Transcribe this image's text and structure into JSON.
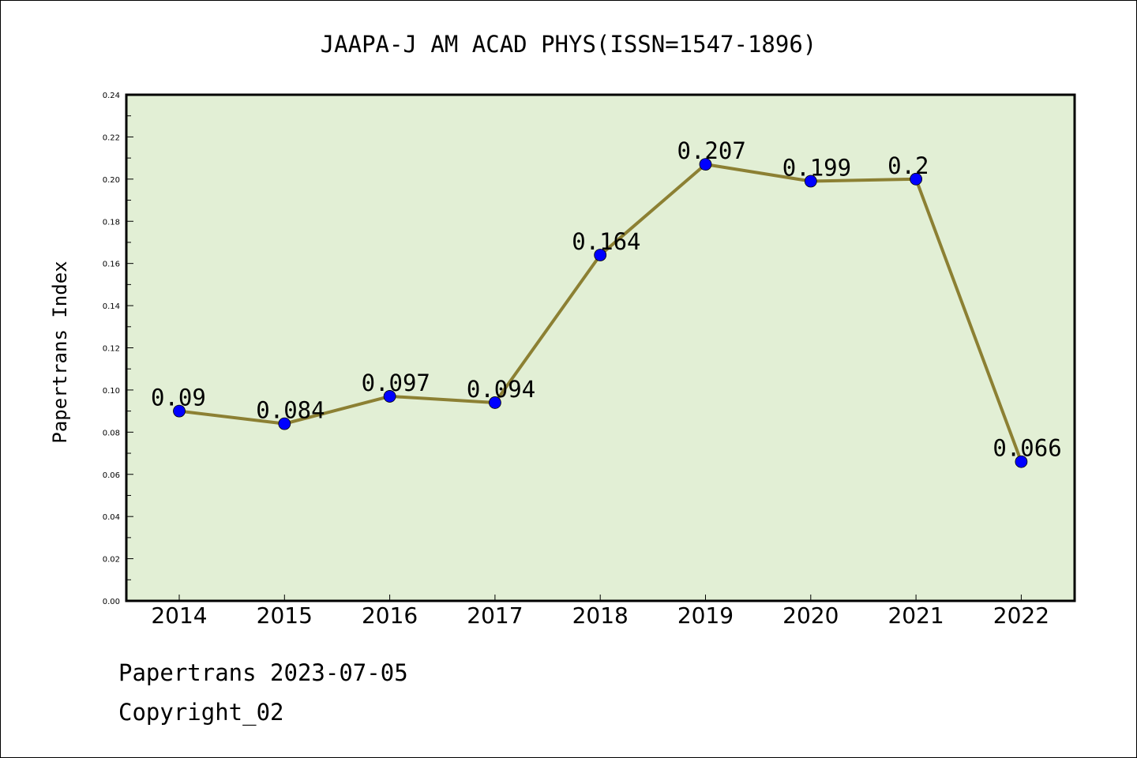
{
  "chart_data": {
    "type": "line",
    "title": "JAAPA-J AM ACAD PHYS(ISSN=1547-1896)",
    "xlabel": "",
    "ylabel": "Papertrans Index",
    "categories": [
      "2014",
      "2015",
      "2016",
      "2017",
      "2018",
      "2019",
      "2020",
      "2021",
      "2022"
    ],
    "values": [
      0.09,
      0.084,
      0.097,
      0.094,
      0.164,
      0.207,
      0.199,
      0.2,
      0.066
    ],
    "data_labels": [
      "0.09",
      "0.084",
      "0.097",
      "0.094",
      "0.164",
      "0.207",
      "0.199",
      "0.2",
      "0.066"
    ],
    "ylim": [
      0,
      0.24
    ],
    "yticks": [
      "0.00",
      "0.02",
      "0.04",
      "0.06",
      "0.08",
      "0.10",
      "0.12",
      "0.14",
      "0.16",
      "0.18",
      "0.20",
      "0.22",
      "0.24"
    ],
    "grid": false,
    "legend": "none",
    "colors": {
      "plot_background": "#e2efd5",
      "line": "#8c8033",
      "marker": "#0000ff"
    }
  },
  "footer": {
    "source": "Papertrans 2023-07-05",
    "copyright": "Copyright_02"
  }
}
